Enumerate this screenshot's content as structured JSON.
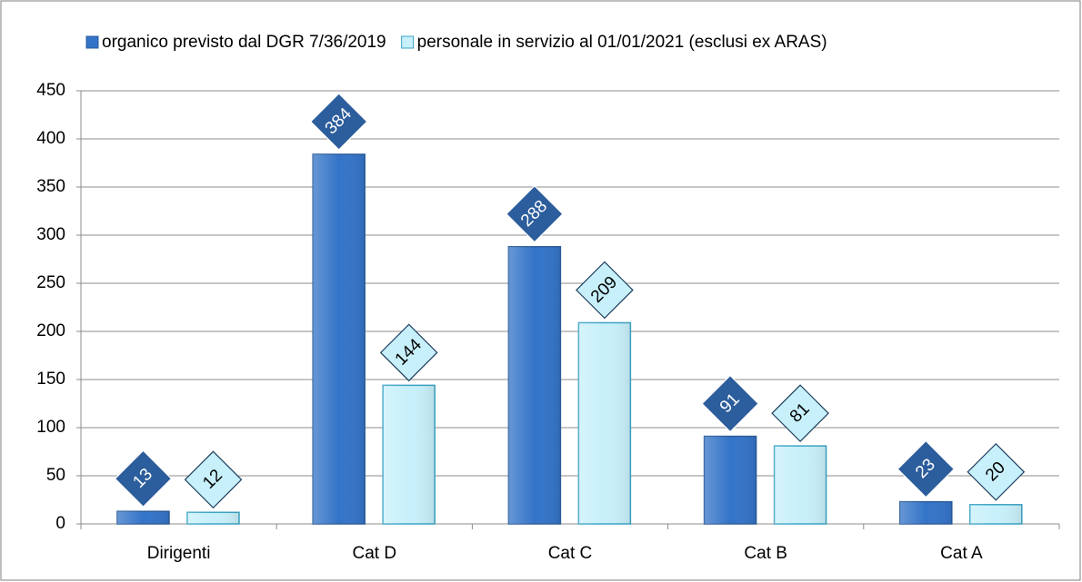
{
  "chart_data": {
    "type": "bar",
    "categories": [
      "Dirigenti",
      "Cat D",
      "Cat C",
      "Cat B",
      "Cat A"
    ],
    "series": [
      {
        "name": "organico previsto dal DGR 7/36/2019",
        "color": "#3474c8",
        "border_color": "#2c5d9c",
        "values": [
          13,
          384,
          288,
          91,
          23
        ]
      },
      {
        "name": "personale in servizio al 01/01/2021 (esclusi ex ARAS)",
        "color": "#c8f0fa",
        "border_color": "#3aa3c4",
        "values": [
          12,
          144,
          209,
          81,
          20
        ]
      }
    ],
    "ylim": [
      0,
      450
    ],
    "yticks": [
      0,
      50,
      100,
      150,
      200,
      250,
      300,
      350,
      400,
      450
    ],
    "grid": true,
    "legend": "top"
  }
}
